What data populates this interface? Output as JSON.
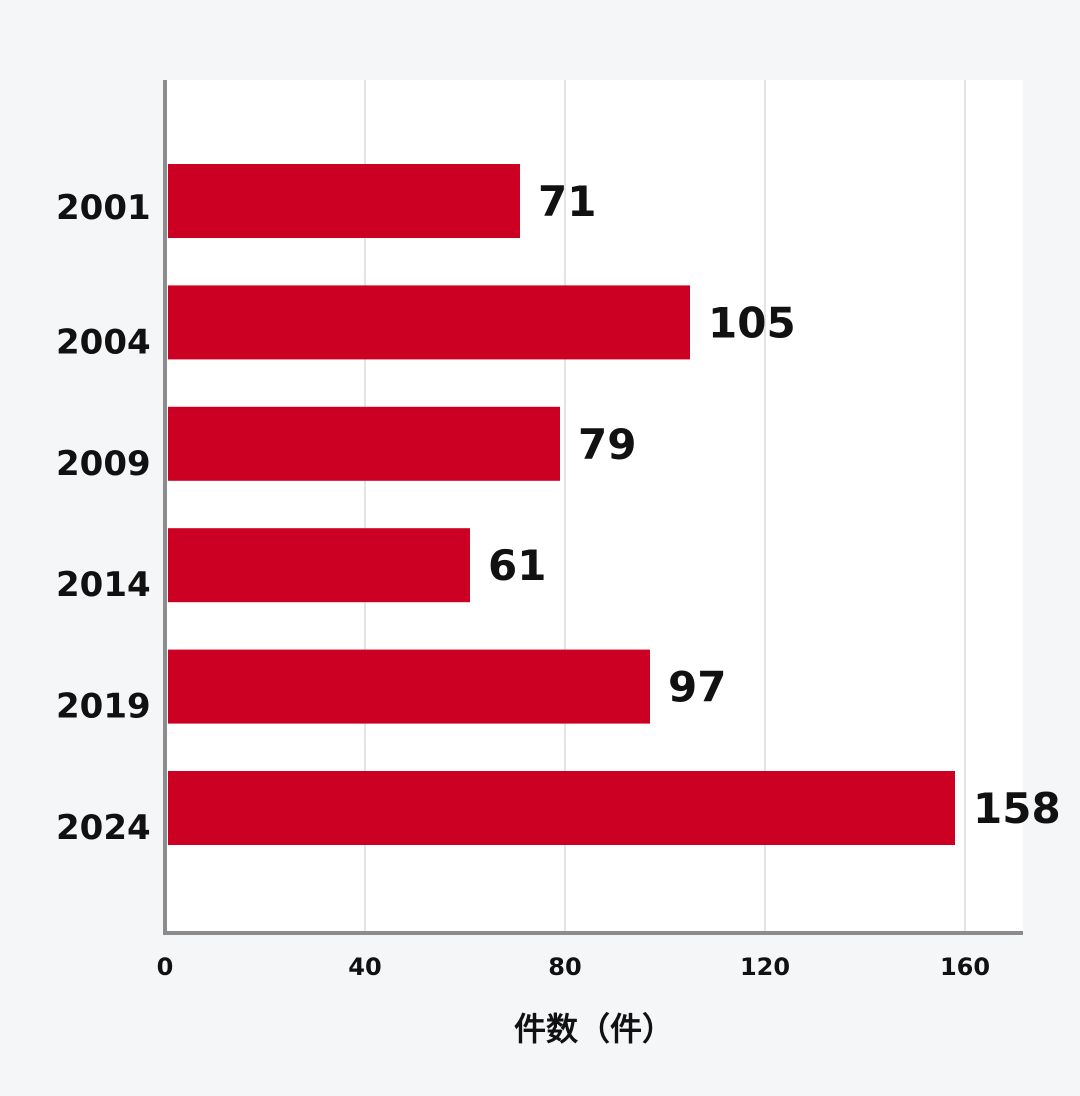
{
  "chart_data": {
    "type": "bar",
    "orientation": "horizontal",
    "categories": [
      "2001",
      "2004",
      "2009",
      "2014",
      "2019",
      "2024"
    ],
    "values": [
      71,
      105,
      79,
      61,
      97,
      158
    ],
    "xlabel": "件数（件）",
    "ylabel": "",
    "xlim": [
      0,
      172
    ],
    "xticks": [
      "0",
      "40",
      "80",
      "120",
      "160"
    ],
    "grid": true,
    "colors": {
      "bar": "#cc0023",
      "axis": "#8c8c8c",
      "grid": "#e4e4e4",
      "plot_bg": "#ffffff",
      "page_bg": "#f5f6f8"
    }
  }
}
